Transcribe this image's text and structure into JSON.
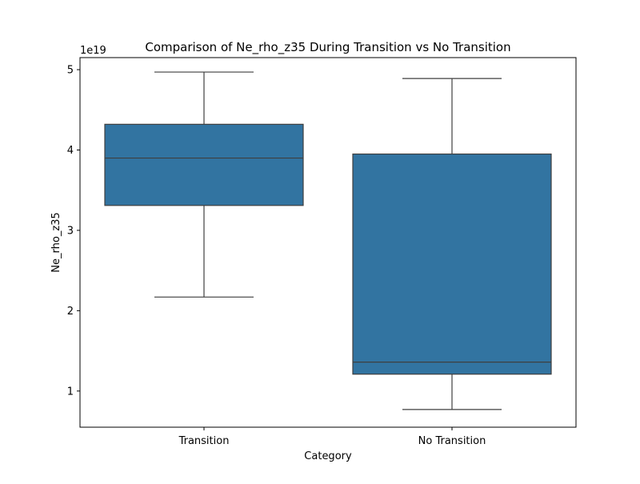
{
  "chart_data": {
    "type": "box",
    "title": "Comparison of Ne_rho_z35 During Transition vs No Transition",
    "xlabel": "Category",
    "ylabel": "Ne_rho_z35",
    "y_offset_label": "1e19",
    "ylim": [
      0.55,
      5.15
    ],
    "yticks": [
      1,
      2,
      3,
      4,
      5
    ],
    "grid": false,
    "categories": [
      "Transition",
      "No Transition"
    ],
    "boxes": [
      {
        "category": "Transition",
        "whisker_low": 2.17,
        "q1": 3.31,
        "median": 3.9,
        "q3": 4.32,
        "whisker_high": 4.97
      },
      {
        "category": "No Transition",
        "whisker_low": 0.77,
        "q1": 1.21,
        "median": 1.36,
        "q3": 3.95,
        "whisker_high": 4.89
      }
    ],
    "colors": {
      "box_fill": "#3274a1",
      "line": "#3f3f3f",
      "axes": "#000000"
    }
  }
}
